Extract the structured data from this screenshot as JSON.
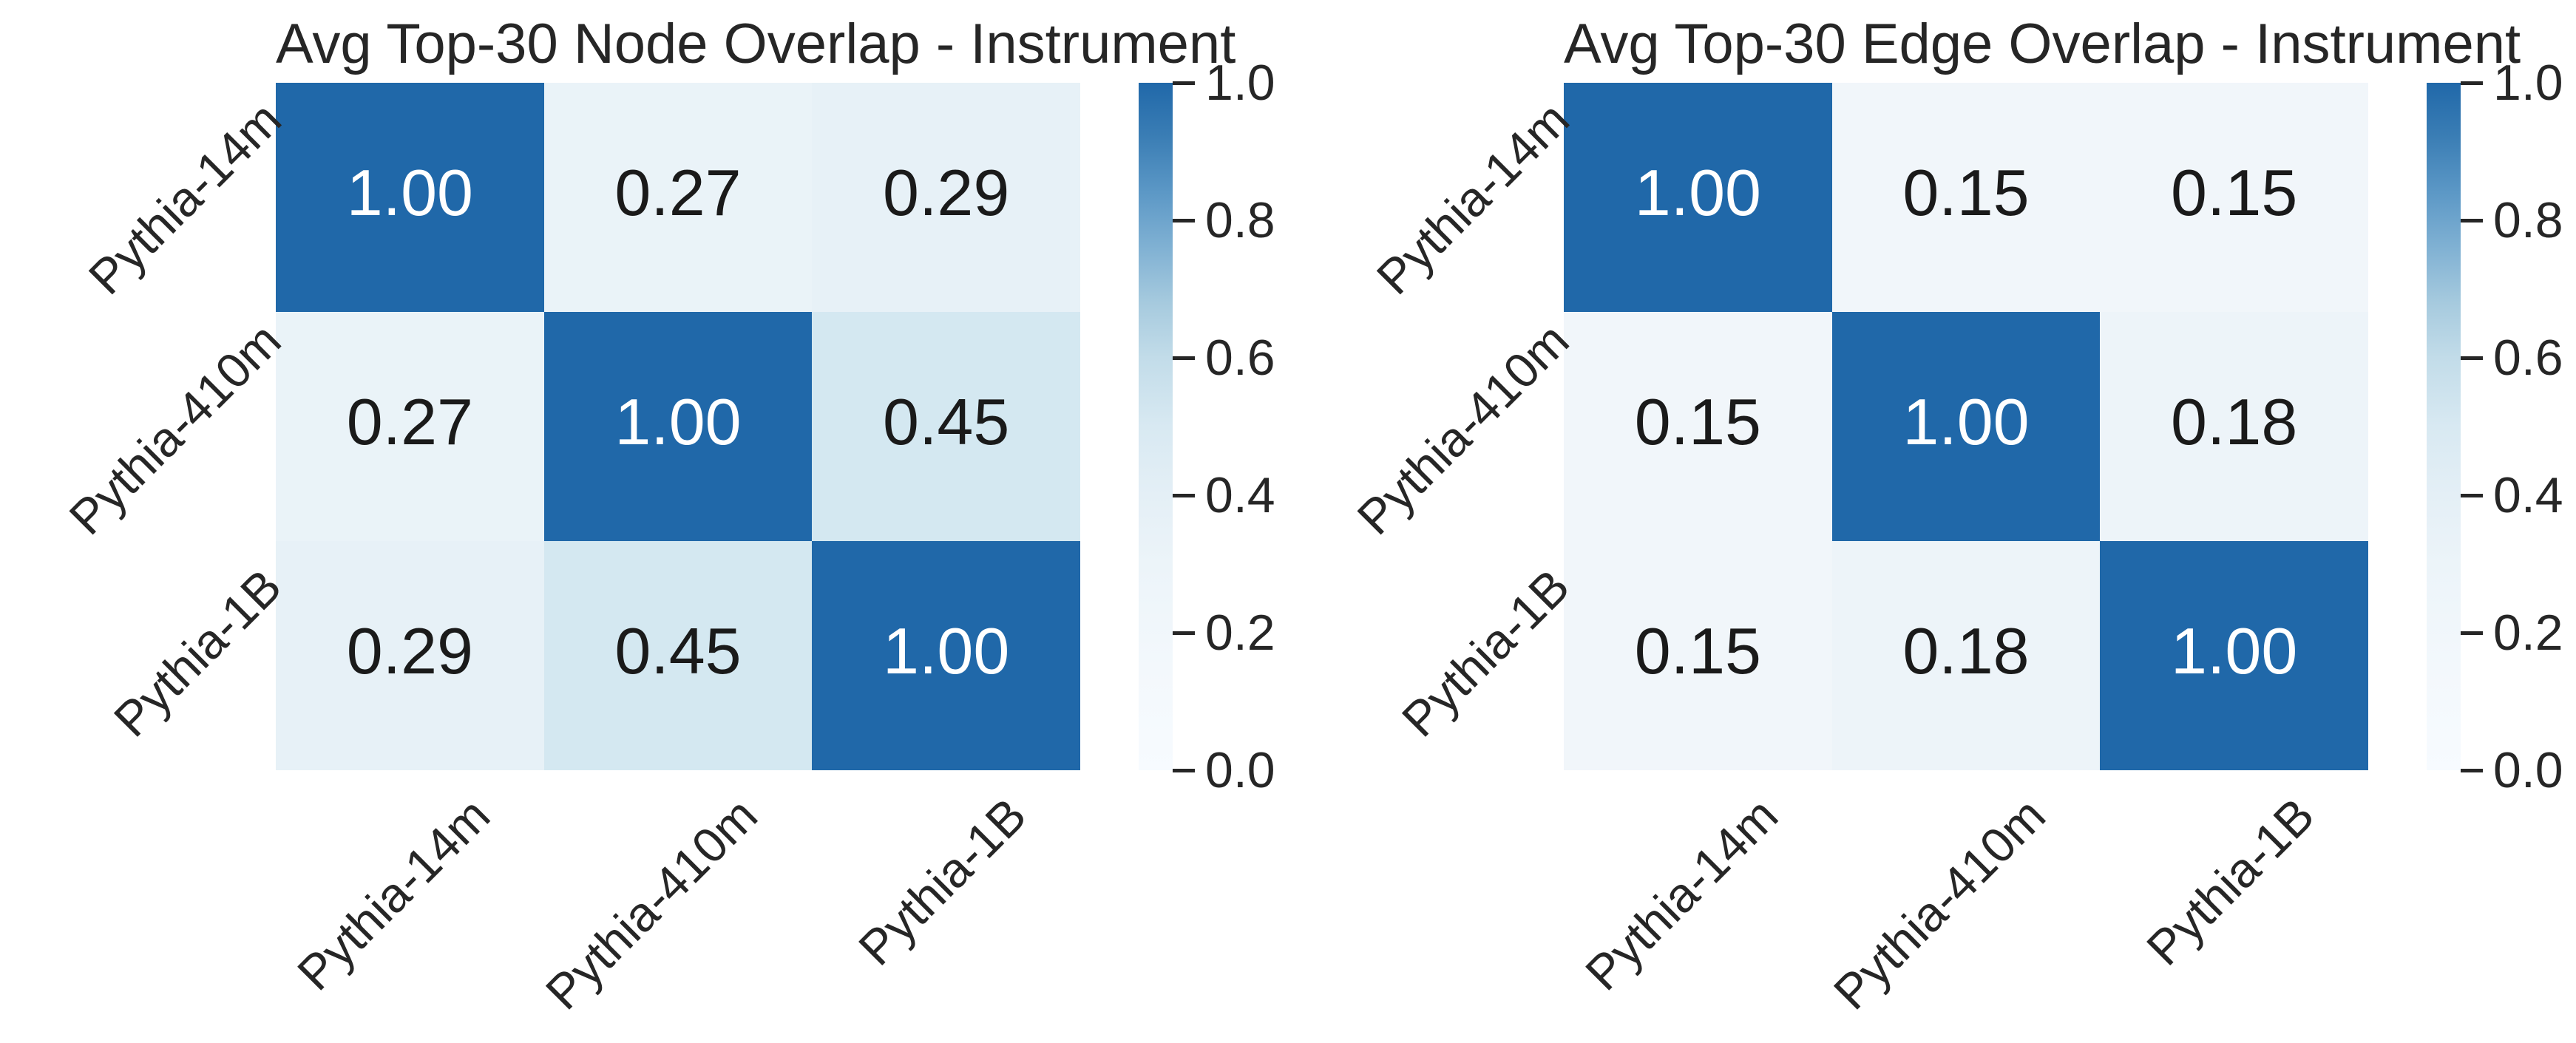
{
  "style": {
    "background": "#ffffff",
    "text_color": "#262626",
    "annot_color_light": "#ffffff",
    "annot_color_dark": "#1a1a1a",
    "heatmap_max_color": "#2068a9",
    "heatmap_min_color": "#f7fbff",
    "value_colors": {
      "1.00": "#2068a9",
      "0.45": "#d4e8f1",
      "0.29": "#e7f1f7",
      "0.27": "#eaf3f8",
      "0.18": "#edf4f9",
      "0.15": "#f1f6fa"
    },
    "colorbar_gradient": [
      [
        "0%",
        "#2068a9"
      ],
      [
        "8%",
        "#3b7eb5"
      ],
      [
        "16%",
        "#5c98c6"
      ],
      [
        "24%",
        "#80b1d3"
      ],
      [
        "32%",
        "#a6cade"
      ],
      [
        "40%",
        "#c2dce9"
      ],
      [
        "50%",
        "#d8e9f2"
      ],
      [
        "60%",
        "#e4eff6"
      ],
      [
        "70%",
        "#ecf4f9"
      ],
      [
        "85%",
        "#f3f8fc"
      ],
      [
        "100%",
        "#f7fbff"
      ]
    ]
  },
  "chart_data": [
    {
      "type": "heatmap",
      "title": "Avg Top-30 Node Overlap - Instrument",
      "x_categories": [
        "Pythia-14m",
        "Pythia-410m",
        "Pythia-1B"
      ],
      "y_categories": [
        "Pythia-14m",
        "Pythia-410m",
        "Pythia-1B"
      ],
      "values": [
        [
          1.0,
          0.27,
          0.29
        ],
        [
          0.27,
          1.0,
          0.45
        ],
        [
          0.29,
          0.45,
          1.0
        ]
      ],
      "value_labels": [
        [
          "1.00",
          "0.27",
          "0.29"
        ],
        [
          "0.27",
          "1.00",
          "0.45"
        ],
        [
          "0.29",
          "0.45",
          "1.00"
        ]
      ],
      "vmin": 0.0,
      "vmax": 1.0,
      "colormap": "Blues",
      "colorbar_ticks": [
        "1.0",
        "0.8",
        "0.6",
        "0.4",
        "0.2",
        "0.0"
      ],
      "legend_position": "right-colorbar",
      "grid": false
    },
    {
      "type": "heatmap",
      "title": "Avg Top-30 Edge Overlap - Instrument",
      "x_categories": [
        "Pythia-14m",
        "Pythia-410m",
        "Pythia-1B"
      ],
      "y_categories": [
        "Pythia-14m",
        "Pythia-410m",
        "Pythia-1B"
      ],
      "values": [
        [
          1.0,
          0.15,
          0.15
        ],
        [
          0.15,
          1.0,
          0.18
        ],
        [
          0.15,
          0.18,
          1.0
        ]
      ],
      "value_labels": [
        [
          "1.00",
          "0.15",
          "0.15"
        ],
        [
          "0.15",
          "1.00",
          "0.18"
        ],
        [
          "0.15",
          "0.18",
          "1.00"
        ]
      ],
      "vmin": 0.0,
      "vmax": 1.0,
      "colormap": "Blues",
      "colorbar_ticks": [
        "1.0",
        "0.8",
        "0.6",
        "0.4",
        "0.2",
        "0.0"
      ],
      "legend_position": "right-colorbar",
      "grid": false
    }
  ]
}
